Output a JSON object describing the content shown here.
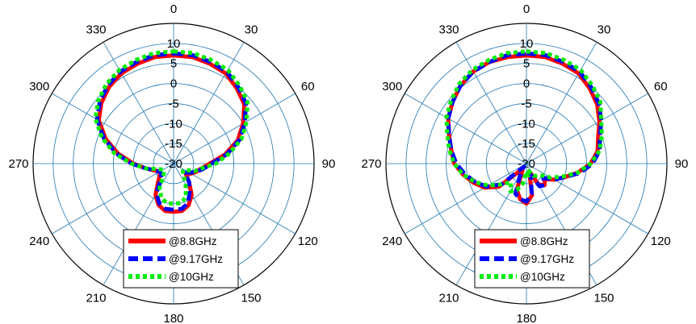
{
  "chart_data": [
    {
      "type": "polar",
      "angle_ticks": [
        "0",
        "30",
        "60",
        "90",
        "120",
        "150",
        "180",
        "210",
        "240",
        "270",
        "300",
        "330"
      ],
      "radial_ticks": [
        "-20",
        "-15",
        "-10",
        "-5",
        "0",
        "5",
        "10"
      ],
      "rlim": [
        -20,
        15
      ],
      "grid": true,
      "legend_position": "bottom-center",
      "angles_deg": [
        0,
        10,
        20,
        30,
        40,
        50,
        60,
        70,
        80,
        90,
        100,
        110,
        120,
        130,
        140,
        150,
        160,
        170,
        180,
        190,
        200,
        210,
        220,
        230,
        240,
        250,
        260,
        270,
        280,
        290,
        300,
        310,
        320,
        330,
        340,
        350
      ],
      "series": [
        {
          "name": "@8.8GHz",
          "color": "#ff0000",
          "dash": "solid",
          "values": [
            7,
            7,
            6.5,
            6,
            4.5,
            3,
            0,
            -3,
            -7,
            -11,
            -13,
            -14,
            -15,
            -16,
            -14,
            -11,
            -9,
            -8,
            -8,
            -8,
            -9,
            -11,
            -14,
            -15.5,
            -16,
            -15,
            -13,
            -10,
            -6,
            -2,
            1.5,
            3.5,
            5,
            6,
            6.5,
            7
          ]
        },
        {
          "name": "@9.17GHz",
          "color": "#0000ff",
          "dash": "dash",
          "values": [
            7.5,
            7.5,
            7,
            6.5,
            5,
            3.5,
            0.5,
            -2.5,
            -6.5,
            -10.5,
            -12.5,
            -14,
            -15.5,
            -16.5,
            -14,
            -12,
            -9.5,
            -8.5,
            -8.5,
            -8.5,
            -9.5,
            -11.5,
            -15,
            -16,
            -16,
            -15,
            -13,
            -9.5,
            -5.5,
            -1.5,
            2,
            4,
            5.5,
            6.5,
            7,
            7.5
          ]
        },
        {
          "name": "@10GHz",
          "color": "#00ee00",
          "dash": "dot",
          "values": [
            8,
            8,
            7.5,
            7,
            5.5,
            4,
            1,
            -2,
            -6,
            -9.5,
            -13,
            -14.5,
            -17,
            -17,
            -16,
            -14,
            -11,
            -10,
            -10,
            -10,
            -11,
            -13,
            -16,
            -17,
            -17,
            -16,
            -13,
            -9.5,
            -5,
            -1,
            2.5,
            4.5,
            6,
            7,
            7.5,
            8
          ]
        }
      ]
    },
    {
      "type": "polar",
      "angle_ticks": [
        "0",
        "30",
        "60",
        "90",
        "120",
        "150",
        "180",
        "210",
        "240",
        "270",
        "300",
        "330"
      ],
      "radial_ticks": [
        "-20",
        "-15",
        "-10",
        "-5",
        "0",
        "5",
        "10"
      ],
      "rlim": [
        -20,
        15
      ],
      "grid": true,
      "legend_position": "bottom-center",
      "angles_deg": [
        0,
        10,
        20,
        30,
        40,
        50,
        60,
        70,
        80,
        90,
        100,
        110,
        120,
        130,
        140,
        150,
        160,
        170,
        180,
        190,
        200,
        210,
        220,
        230,
        240,
        250,
        260,
        270,
        280,
        290,
        300,
        310,
        320,
        330,
        340,
        350
      ],
      "series": [
        {
          "name": "@8.8GHz",
          "color": "#ff0000",
          "dash": "solid",
          "values": [
            7,
            7,
            6.5,
            6,
            4.5,
            3,
            1,
            -1,
            -2,
            -4,
            -7,
            -10,
            -12,
            -14,
            -13,
            -14,
            -18,
            -12,
            -10,
            -11,
            -13,
            -18,
            -18,
            -11,
            -8,
            -6,
            -4,
            -2,
            -1,
            0.5,
            2.5,
            4,
            5.5,
            6.5,
            7,
            7
          ]
        },
        {
          "name": "@9.17GHz",
          "color": "#0000ff",
          "dash": "dash",
          "values": [
            7.5,
            7.5,
            7,
            6.5,
            5,
            3.5,
            1.5,
            -0.5,
            -1.5,
            -3.5,
            -6.5,
            -10,
            -12,
            -14.5,
            -13,
            -13.5,
            -17,
            -12.5,
            -10.5,
            -11,
            -12,
            -17,
            -19,
            -12,
            -8.5,
            -6.5,
            -4.5,
            -2.5,
            -1,
            0.5,
            2.5,
            4,
            5.5,
            6.5,
            7,
            7.5
          ]
        },
        {
          "name": "@10GHz",
          "color": "#00ee00",
          "dash": "dot",
          "values": [
            8,
            8,
            7.5,
            7,
            5.5,
            4,
            1.5,
            0,
            -1.5,
            -4,
            -7,
            -10.5,
            -13,
            -15.5,
            -16,
            -16.5,
            -18,
            -17,
            -18,
            -15,
            -13,
            -12,
            -14,
            -12,
            -9,
            -6.5,
            -4,
            -2,
            -0.5,
            1,
            3,
            4.5,
            6,
            7,
            7.5,
            8
          ]
        }
      ]
    }
  ]
}
